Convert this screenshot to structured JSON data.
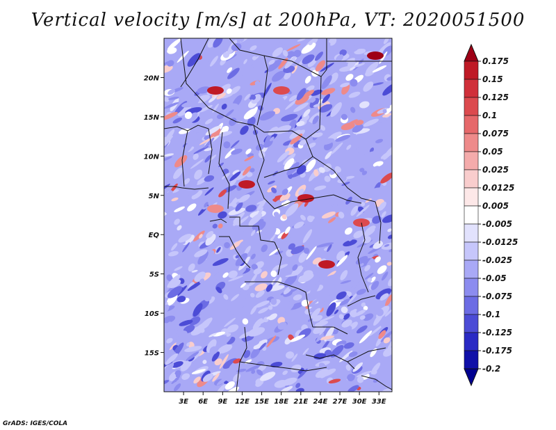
{
  "title": "Vertical velocity [m/s] at 200hPa, VT: 2020051500",
  "footer": "GrADS: IGES/COLA",
  "chart_data": {
    "type": "heatmap",
    "title": "Vertical velocity [m/s] at 200hPa, VT: 2020051500",
    "variable": "Vertical velocity",
    "units": "m/s",
    "level": "200hPa",
    "valid_time": "2020051500",
    "x_ticks": [
      "3E",
      "6E",
      "9E",
      "12E",
      "15E",
      "18E",
      "21E",
      "24E",
      "27E",
      "30E",
      "33E"
    ],
    "x_tick_values": [
      3,
      6,
      9,
      12,
      15,
      18,
      21,
      24,
      27,
      30,
      33
    ],
    "y_ticks": [
      "20N",
      "15N",
      "10N",
      "5N",
      "EQ",
      "5S",
      "10S",
      "15S"
    ],
    "y_tick_values": [
      20,
      15,
      10,
      5,
      0,
      -5,
      -10,
      -15
    ],
    "xlim": [
      0,
      35
    ],
    "ylim": [
      -20,
      25
    ],
    "colorbar": {
      "labels": [
        "0.175",
        "0.15",
        "0.125",
        "0.1",
        "0.075",
        "0.05",
        "0.025",
        "0.0125",
        "0.005",
        "-0.005",
        "-0.0125",
        "-0.025",
        "-0.05",
        "-0.075",
        "-0.1",
        "-0.125",
        "-0.175",
        "-0.2"
      ],
      "colors": [
        "#9e0016",
        "#bf1a26",
        "#d0303a",
        "#dc4a4e",
        "#e6686a",
        "#ee8a8a",
        "#f4abab",
        "#f9cdcd",
        "#fde8e8",
        "#ffffff",
        "#e2e2fd",
        "#c6c6fb",
        "#a9a9f6",
        "#8c8cef",
        "#6c6ce4",
        "#4c4cd6",
        "#2a2ac4",
        "#1010a8",
        "#000090"
      ]
    }
  }
}
